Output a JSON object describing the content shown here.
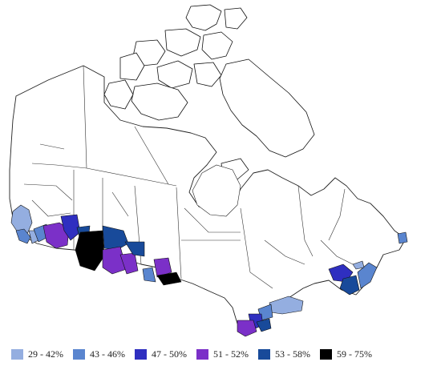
{
  "legend": {
    "items": [
      {
        "label": "29 - 42%",
        "color": "#94aee0"
      },
      {
        "label": "43 - 46%",
        "color": "#5a85cf"
      },
      {
        "label": "47 - 50%",
        "color": "#2f2fc0"
      },
      {
        "label": "51 - 52%",
        "color": "#7b30c8"
      },
      {
        "label": "53 - 58%",
        "color": "#184a9a"
      },
      {
        "label": "59 - 75%",
        "color": "#000000"
      }
    ]
  }
}
